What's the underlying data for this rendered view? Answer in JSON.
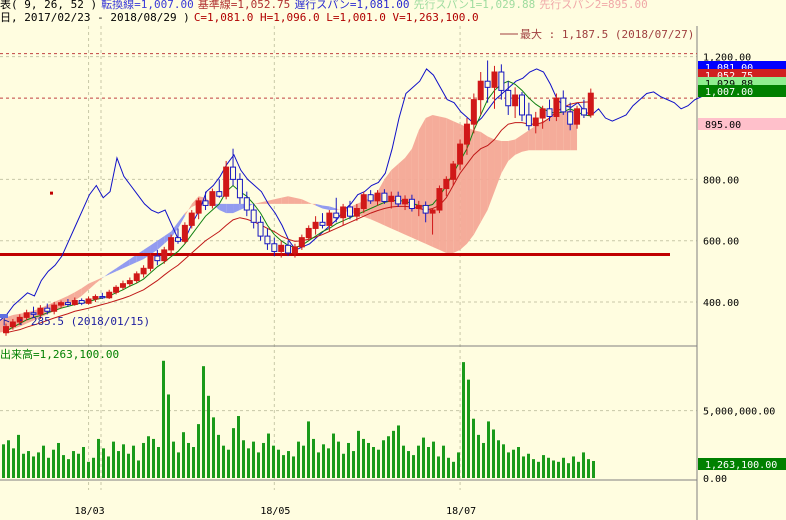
{
  "header": {
    "line1": [
      {
        "text": "表( 9, 26, 52 )",
        "color": "#000000"
      },
      {
        "text": "転換線=1,007.00",
        "color": "#3a3ad8"
      },
      {
        "text": "基準線=1,052.75",
        "color": "#b03030"
      },
      {
        "text": "遅行スパン=1,081.00",
        "color": "#2a2ad0"
      },
      {
        "text": "先行スパン1=1,029.88",
        "color": "#9fdc9f"
      },
      {
        "text": "先行スパン2=895.00",
        "color": "#f0a8a8"
      }
    ],
    "line2": [
      {
        "text": "日, 2017/02/23 - 2018/08/29 )",
        "color": "#000000"
      },
      {
        "text": "C=1,081.0 H=1,096.0 L=1,001.0 V=1,263,100.0",
        "color": "#b00000"
      }
    ]
  },
  "annotations": {
    "max_label": "最大 : 1,187.5 (2018/07/27)",
    "min_label": "ト : 285.5 (2018/01/15)",
    "volume_title": "出来高=1,263,100.00"
  },
  "chart_data": [
    {
      "type": "candlestick",
      "title": "",
      "yticks": [
        "1,200.00",
        "800.00",
        "600.00",
        "400.00"
      ],
      "ytick_values": [
        1200,
        800,
        600,
        400
      ],
      "ylim": [
        260,
        1300
      ],
      "x_ticks": [
        "18/03",
        "18/05",
        "18/07"
      ],
      "x_tick_index": [
        12,
        39,
        66
      ],
      "value_tags": [
        {
          "text": "1,081.00",
          "value": 1081,
          "bg": "#0000ff",
          "fg": "#ffffff"
        },
        {
          "text": "1,052.75",
          "value": 1052.75,
          "bg": "#d02020",
          "fg": "#ffffff"
        },
        {
          "text": "1,029.88",
          "value": 1029.88,
          "bg": "#90ee90",
          "fg": "#000000"
        },
        {
          "text": "1,007.00",
          "value": 1007,
          "bg": "#008000",
          "fg": "#ffffff"
        },
        {
          "text": "895.00",
          "value": 895,
          "bg": "#ffc0cb",
          "fg": "#000000"
        }
      ],
      "support_line": 555,
      "candles": [
        {
          "o": 300,
          "h": 330,
          "l": 290,
          "c": 320
        },
        {
          "o": 320,
          "h": 345,
          "l": 310,
          "c": 335
        },
        {
          "o": 335,
          "h": 360,
          "l": 325,
          "c": 350
        },
        {
          "o": 350,
          "h": 375,
          "l": 340,
          "c": 365
        },
        {
          "o": 365,
          "h": 385,
          "l": 350,
          "c": 360
        },
        {
          "o": 360,
          "h": 390,
          "l": 345,
          "c": 380
        },
        {
          "o": 380,
          "h": 395,
          "l": 360,
          "c": 370
        },
        {
          "o": 370,
          "h": 400,
          "l": 360,
          "c": 390
        },
        {
          "o": 390,
          "h": 405,
          "l": 380,
          "c": 398
        },
        {
          "o": 398,
          "h": 410,
          "l": 385,
          "c": 392
        },
        {
          "o": 392,
          "h": 415,
          "l": 388,
          "c": 405
        },
        {
          "o": 405,
          "h": 412,
          "l": 390,
          "c": 396
        },
        {
          "o": 396,
          "h": 418,
          "l": 392,
          "c": 410
        },
        {
          "o": 410,
          "h": 425,
          "l": 400,
          "c": 418
        },
        {
          "o": 418,
          "h": 430,
          "l": 410,
          "c": 414
        },
        {
          "o": 414,
          "h": 440,
          "l": 410,
          "c": 432
        },
        {
          "o": 432,
          "h": 455,
          "l": 425,
          "c": 448
        },
        {
          "o": 448,
          "h": 470,
          "l": 440,
          "c": 460
        },
        {
          "o": 460,
          "h": 480,
          "l": 450,
          "c": 470
        },
        {
          "o": 470,
          "h": 500,
          "l": 462,
          "c": 492
        },
        {
          "o": 492,
          "h": 520,
          "l": 480,
          "c": 510
        },
        {
          "o": 510,
          "h": 560,
          "l": 500,
          "c": 550
        },
        {
          "o": 550,
          "h": 570,
          "l": 520,
          "c": 535
        },
        {
          "o": 535,
          "h": 580,
          "l": 525,
          "c": 570
        },
        {
          "o": 570,
          "h": 620,
          "l": 555,
          "c": 610
        },
        {
          "o": 610,
          "h": 640,
          "l": 590,
          "c": 598
        },
        {
          "o": 598,
          "h": 660,
          "l": 590,
          "c": 650
        },
        {
          "o": 650,
          "h": 700,
          "l": 640,
          "c": 690
        },
        {
          "o": 690,
          "h": 740,
          "l": 670,
          "c": 730
        },
        {
          "o": 730,
          "h": 760,
          "l": 700,
          "c": 715
        },
        {
          "o": 715,
          "h": 770,
          "l": 705,
          "c": 760
        },
        {
          "o": 760,
          "h": 800,
          "l": 740,
          "c": 745
        },
        {
          "o": 745,
          "h": 860,
          "l": 735,
          "c": 840
        },
        {
          "o": 840,
          "h": 900,
          "l": 780,
          "c": 800
        },
        {
          "o": 800,
          "h": 820,
          "l": 720,
          "c": 740
        },
        {
          "o": 740,
          "h": 760,
          "l": 680,
          "c": 700
        },
        {
          "o": 700,
          "h": 720,
          "l": 640,
          "c": 660
        },
        {
          "o": 660,
          "h": 680,
          "l": 600,
          "c": 615
        },
        {
          "o": 615,
          "h": 640,
          "l": 570,
          "c": 590
        },
        {
          "o": 590,
          "h": 610,
          "l": 550,
          "c": 565
        },
        {
          "o": 565,
          "h": 600,
          "l": 545,
          "c": 585
        },
        {
          "o": 585,
          "h": 600,
          "l": 550,
          "c": 560
        },
        {
          "o": 560,
          "h": 590,
          "l": 545,
          "c": 580
        },
        {
          "o": 580,
          "h": 620,
          "l": 570,
          "c": 610
        },
        {
          "o": 610,
          "h": 650,
          "l": 600,
          "c": 640
        },
        {
          "o": 640,
          "h": 680,
          "l": 620,
          "c": 660
        },
        {
          "o": 660,
          "h": 690,
          "l": 640,
          "c": 650
        },
        {
          "o": 650,
          "h": 700,
          "l": 630,
          "c": 690
        },
        {
          "o": 690,
          "h": 740,
          "l": 660,
          "c": 675
        },
        {
          "o": 675,
          "h": 720,
          "l": 650,
          "c": 710
        },
        {
          "o": 710,
          "h": 730,
          "l": 670,
          "c": 680
        },
        {
          "o": 680,
          "h": 720,
          "l": 665,
          "c": 705
        },
        {
          "o": 705,
          "h": 760,
          "l": 690,
          "c": 750
        },
        {
          "o": 750,
          "h": 765,
          "l": 720,
          "c": 730
        },
        {
          "o": 730,
          "h": 765,
          "l": 715,
          "c": 755
        },
        {
          "o": 755,
          "h": 768,
          "l": 720,
          "c": 728
        },
        {
          "o": 728,
          "h": 760,
          "l": 705,
          "c": 745
        },
        {
          "o": 745,
          "h": 760,
          "l": 710,
          "c": 720
        },
        {
          "o": 720,
          "h": 748,
          "l": 700,
          "c": 735
        },
        {
          "o": 735,
          "h": 750,
          "l": 695,
          "c": 705
        },
        {
          "o": 705,
          "h": 730,
          "l": 680,
          "c": 715
        },
        {
          "o": 715,
          "h": 728,
          "l": 660,
          "c": 690
        },
        {
          "o": 690,
          "h": 705,
          "l": 620,
          "c": 700
        },
        {
          "o": 700,
          "h": 780,
          "l": 690,
          "c": 770
        },
        {
          "o": 770,
          "h": 810,
          "l": 745,
          "c": 800
        },
        {
          "o": 800,
          "h": 860,
          "l": 780,
          "c": 850
        },
        {
          "o": 850,
          "h": 930,
          "l": 830,
          "c": 915
        },
        {
          "o": 915,
          "h": 1000,
          "l": 880,
          "c": 980
        },
        {
          "o": 980,
          "h": 1080,
          "l": 950,
          "c": 1060
        },
        {
          "o": 1060,
          "h": 1150,
          "l": 1010,
          "c": 1120
        },
        {
          "o": 1120,
          "h": 1187.5,
          "l": 1050,
          "c": 1100
        },
        {
          "o": 1100,
          "h": 1170,
          "l": 1030,
          "c": 1150
        },
        {
          "o": 1150,
          "h": 1175,
          "l": 1060,
          "c": 1090
        },
        {
          "o": 1090,
          "h": 1120,
          "l": 1010,
          "c": 1040
        },
        {
          "o": 1040,
          "h": 1100,
          "l": 1000,
          "c": 1075
        },
        {
          "o": 1075,
          "h": 1085,
          "l": 990,
          "c": 1010
        },
        {
          "o": 1010,
          "h": 1050,
          "l": 960,
          "c": 975
        },
        {
          "o": 975,
          "h": 1020,
          "l": 950,
          "c": 1000
        },
        {
          "o": 1000,
          "h": 1040,
          "l": 965,
          "c": 1030
        },
        {
          "o": 1030,
          "h": 1060,
          "l": 990,
          "c": 1005
        },
        {
          "o": 1005,
          "h": 1080,
          "l": 990,
          "c": 1065
        },
        {
          "o": 1065,
          "h": 1090,
          "l": 1010,
          "c": 1020
        },
        {
          "o": 1020,
          "h": 1050,
          "l": 960,
          "c": 980
        },
        {
          "o": 980,
          "h": 1040,
          "l": 965,
          "c": 1030
        },
        {
          "o": 1030,
          "h": 1060,
          "l": 1000,
          "c": 1010
        },
        {
          "o": 1010,
          "h": 1096,
          "l": 1001,
          "c": 1081
        }
      ],
      "tenkan": [
        305,
        318,
        330,
        342,
        350,
        356,
        365,
        372,
        380,
        386,
        392,
        397,
        402,
        408,
        413,
        420,
        430,
        440,
        452,
        462,
        475,
        495,
        515,
        530,
        548,
        565,
        590,
        620,
        650,
        680,
        700,
        720,
        760,
        780,
        760,
        745,
        720,
        690,
        650,
        620,
        600,
        585,
        578,
        585,
        600,
        615,
        630,
        640,
        655,
        665,
        675,
        685,
        695,
        705,
        715,
        725,
        730,
        732,
        728,
        722,
        715,
        712,
        718,
        745,
        780,
        820,
        860,
        900,
        960,
        1010,
        1060,
        1090,
        1110,
        1120,
        1110,
        1090,
        1065,
        1045,
        1030,
        1020,
        1015,
        1020,
        1030,
        1020,
        1010,
        1007
      ],
      "kijun": [
        300,
        305,
        310,
        318,
        325,
        332,
        340,
        348,
        355,
        362,
        370,
        375,
        380,
        386,
        392,
        398,
        405,
        412,
        420,
        430,
        440,
        455,
        470,
        488,
        505,
        520,
        540,
        560,
        580,
        600,
        615,
        630,
        650,
        668,
        675,
        670,
        662,
        652,
        640,
        630,
        615,
        605,
        598,
        600,
        605,
        612,
        620,
        630,
        640,
        650,
        660,
        670,
        680,
        690,
        698,
        705,
        710,
        712,
        712,
        710,
        705,
        700,
        705,
        715,
        740,
        780,
        820,
        850,
        880,
        900,
        910,
        930,
        960,
        980,
        985,
        985,
        980,
        980,
        985,
        1000,
        1020,
        1035,
        1045,
        1050,
        1052,
        1052.75
      ],
      "chikou": [
        340,
        360,
        390,
        410,
        430,
        420,
        470,
        500,
        520,
        550,
        600,
        650,
        700,
        750,
        780,
        740,
        760,
        870,
        810,
        780,
        750,
        720,
        700,
        690,
        700,
        650,
        600,
        610,
        660,
        700,
        760,
        780,
        810,
        850,
        880,
        830,
        800,
        780,
        760,
        720,
        690,
        650,
        600,
        570,
        580,
        590,
        610,
        630,
        650,
        670,
        700,
        720,
        750,
        760,
        780,
        790,
        820,
        900,
        1000,
        1080,
        1100,
        1120,
        1160,
        1140,
        1100,
        1060,
        1050,
        1020,
        1000,
        980,
        1000,
        1030,
        1060,
        1080,
        1100,
        1120,
        1130,
        1150,
        1160,
        1150,
        1110,
        1060,
        1040,
        1035,
        1050,
        1020,
        1010,
        1030,
        1000,
        990,
        1000,
        1010,
        1040,
        1060,
        1080,
        1085,
        1070,
        1060,
        1050,
        1030,
        1040,
        1060,
        1070,
        1075,
        1081
      ],
      "span1": [
        265,
        270,
        275,
        280,
        290,
        300,
        310,
        320,
        330,
        340,
        350,
        358,
        362,
        366,
        372,
        380,
        390,
        400,
        410,
        420,
        432,
        445,
        460,
        470,
        480,
        490,
        500,
        510,
        520,
        530,
        540,
        555,
        570,
        590,
        610,
        640,
        680,
        720,
        745,
        740,
        720,
        700,
        690,
        690,
        700,
        710,
        720,
        725,
        730,
        735,
        740,
        745,
        740,
        735,
        725,
        715,
        705,
        700,
        700,
        705,
        710,
        720,
        730,
        740,
        760,
        800,
        830,
        850,
        870,
        900,
        960,
        1000,
        1010,
        1005,
        1000,
        990,
        980,
        970,
        960,
        955,
        940,
        930,
        925,
        925,
        930,
        945,
        960,
        975,
        990,
        1000,
        1010,
        1020,
        1025,
        1029.88
      ],
      "span2": [
        260,
        262,
        265,
        268,
        272,
        276,
        280,
        286,
        292,
        300,
        305,
        312,
        320,
        330,
        340,
        350,
        360,
        370,
        380,
        392,
        405,
        420,
        440,
        460,
        478,
        495,
        510,
        525,
        540,
        555,
        570,
        585,
        600,
        615,
        630,
        660,
        690,
        710,
        720,
        720,
        720,
        720,
        720,
        720,
        720,
        720,
        720,
        720,
        720,
        720,
        720,
        720,
        720,
        720,
        720,
        720,
        715,
        712,
        705,
        698,
        692,
        685,
        678,
        670,
        660,
        650,
        640,
        630,
        620,
        610,
        600,
        590,
        580,
        570,
        560,
        560,
        570,
        590,
        620,
        660,
        700,
        760,
        820,
        860,
        880,
        890,
        895,
        895,
        895,
        895,
        895,
        895,
        895,
        895
      ]
    },
    {
      "type": "bar",
      "title": "出来高=1,263,100.00",
      "yticks": [
        "5,000,000.00",
        "0.00"
      ],
      "ytick_values": [
        5000000,
        0
      ],
      "ylim": [
        0,
        9500000
      ],
      "value_tag": {
        "text": "1,263,100.00",
        "value": 1263100
      },
      "values": [
        2500000,
        2800000,
        2200000,
        3200000,
        1800000,
        2000000,
        1600000,
        1900000,
        2400000,
        1500000,
        2100000,
        2600000,
        1700000,
        1400000,
        2000000,
        1800000,
        2300000,
        1200000,
        1500000,
        2900000,
        2200000,
        1600000,
        2700000,
        2000000,
        2500000,
        1800000,
        2400000,
        1300000,
        2600000,
        3100000,
        2900000,
        2300000,
        8700000,
        6200000,
        2700000,
        1900000,
        3400000,
        2600000,
        2300000,
        4000000,
        8300000,
        6100000,
        4500000,
        3200000,
        2400000,
        2100000,
        3700000,
        4600000,
        2800000,
        2200000,
        2700000,
        1900000,
        2600000,
        3300000,
        2400000,
        2100000,
        1700000,
        2000000,
        1600000,
        2700000,
        2400000,
        4200000,
        2900000,
        1900000,
        2500000,
        2200000,
        3300000,
        2700000,
        1800000,
        2600000,
        2000000,
        3500000,
        2900000,
        2600000,
        2300000,
        2100000,
        2800000,
        3100000,
        3500000,
        3900000,
        2400000,
        2000000,
        1700000,
        2400000,
        3000000,
        2300000,
        2700000,
        1600000,
        2400000,
        1500000,
        1200000,
        1900000,
        8600000,
        7300000,
        4400000,
        3200000,
        2600000,
        4200000,
        3600000,
        2800000,
        2500000,
        1900000,
        2100000,
        2300000,
        1600000,
        1800000,
        1400000,
        1200000,
        1700000,
        1500000,
        1300000,
        1200000,
        1500000,
        1100000,
        1600000,
        1200000,
        1900000,
        1400000,
        1263100
      ]
    }
  ]
}
